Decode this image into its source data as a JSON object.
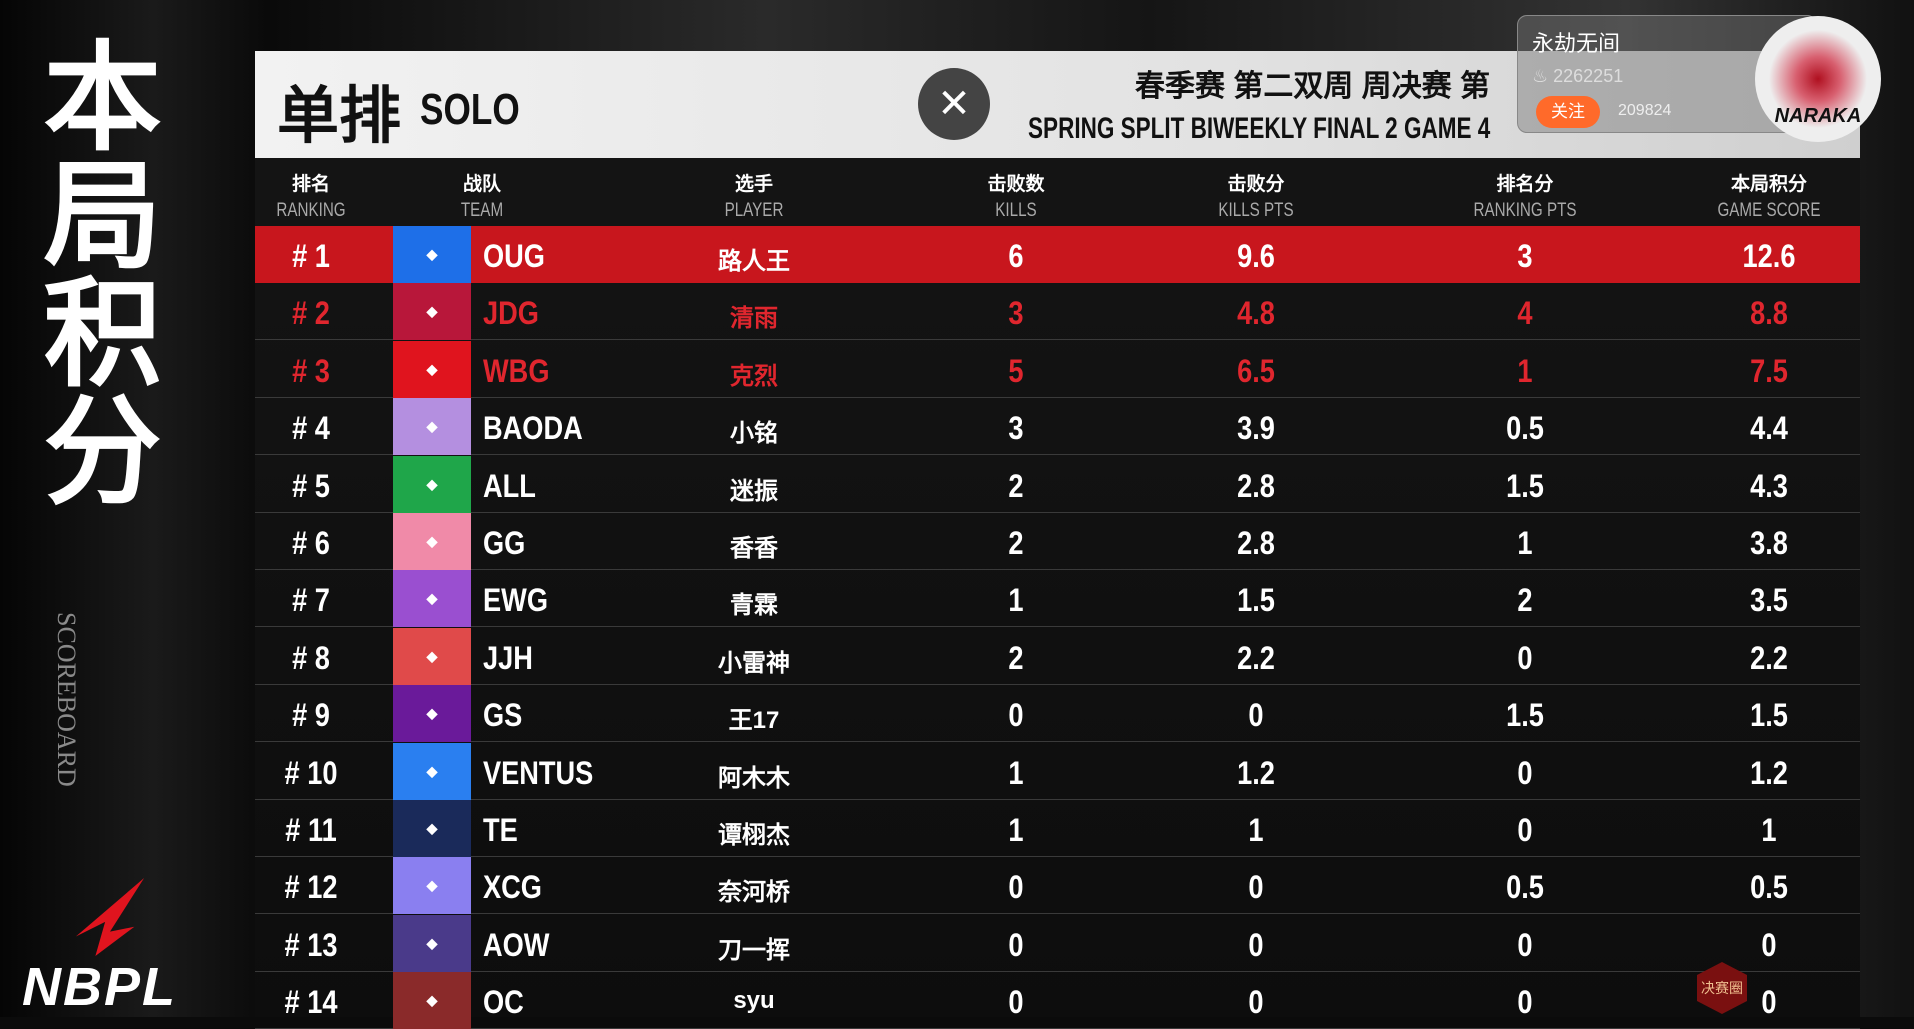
{
  "sidebar": {
    "title_cn": "本局积分",
    "title_en": "SCOREBOARD",
    "brand": "NBPL"
  },
  "header": {
    "title_cn": "单排",
    "title_en": "SOLO",
    "subtitle_cn": "春季赛 第二双周 周决赛 第",
    "subtitle_en": "SPRING SPLIT BIWEEKLY FINAL 2 GAME 4",
    "close_icon": "close-icon"
  },
  "columns": [
    {
      "cn": "排名",
      "en": "RANKING"
    },
    {
      "cn": "战队",
      "en": "TEAM"
    },
    {
      "cn": "选手",
      "en": "PLAYER"
    },
    {
      "cn": "击败数",
      "en": "KILLS"
    },
    {
      "cn": "击败分",
      "en": "KILLS PTS"
    },
    {
      "cn": "排名分",
      "en": "RANKING PTS"
    },
    {
      "cn": "本局积分",
      "en": "GAME SCORE"
    }
  ],
  "rows": [
    {
      "rank": "# 1",
      "team": "OUG",
      "player": "路人王",
      "kills": "6",
      "kills_pts": "9.6",
      "rank_pts": "3",
      "score": "12.6",
      "color": "#1e6fe8"
    },
    {
      "rank": "# 2",
      "team": "JDG",
      "player": "清雨",
      "kills": "3",
      "kills_pts": "4.8",
      "rank_pts": "4",
      "score": "8.8",
      "color": "#b8173a"
    },
    {
      "rank": "# 3",
      "team": "WBG",
      "player": "克烈",
      "kills": "5",
      "kills_pts": "6.5",
      "rank_pts": "1",
      "score": "7.5",
      "color": "#e0141e"
    },
    {
      "rank": "# 4",
      "team": "BAODA",
      "player": "小铭",
      "kills": "3",
      "kills_pts": "3.9",
      "rank_pts": "0.5",
      "score": "4.4",
      "color": "#b48fe0"
    },
    {
      "rank": "# 5",
      "team": "ALL",
      "player": "迷振",
      "kills": "2",
      "kills_pts": "2.8",
      "rank_pts": "1.5",
      "score": "4.3",
      "color": "#1fa64a"
    },
    {
      "rank": "# 6",
      "team": "GG",
      "player": "香香",
      "kills": "2",
      "kills_pts": "2.8",
      "rank_pts": "1",
      "score": "3.8",
      "color": "#f08aa8"
    },
    {
      "rank": "# 7",
      "team": "EWG",
      "player": "青霖",
      "kills": "1",
      "kills_pts": "1.5",
      "rank_pts": "2",
      "score": "3.5",
      "color": "#9a4fd0"
    },
    {
      "rank": "# 8",
      "team": "JJH",
      "player": "小雷神",
      "kills": "2",
      "kills_pts": "2.2",
      "rank_pts": "0",
      "score": "2.2",
      "color": "#e04a4a"
    },
    {
      "rank": "# 9",
      "team": "GS",
      "player": "王17",
      "kills": "0",
      "kills_pts": "0",
      "rank_pts": "1.5",
      "score": "1.5",
      "color": "#6a1a9a"
    },
    {
      "rank": "# 10",
      "team": "VENTUS",
      "player": "阿木木",
      "kills": "1",
      "kills_pts": "1.2",
      "rank_pts": "0",
      "score": "1.2",
      "color": "#2a7ff0"
    },
    {
      "rank": "# 11",
      "team": "TE",
      "player": "谭栩杰",
      "kills": "1",
      "kills_pts": "1",
      "rank_pts": "0",
      "score": "1",
      "color": "#1a2a5a"
    },
    {
      "rank": "# 12",
      "team": "XCG",
      "player": "奈河桥",
      "kills": "0",
      "kills_pts": "0",
      "rank_pts": "0.5",
      "score": "0.5",
      "color": "#8a7ff0"
    },
    {
      "rank": "# 13",
      "team": "AOW",
      "player": "刀一挥",
      "kills": "0",
      "kills_pts": "0",
      "rank_pts": "0",
      "score": "0",
      "color": "#4a3a8a"
    },
    {
      "rank": "# 14",
      "team": "OC",
      "player": "syu",
      "kills": "0",
      "kills_pts": "0",
      "rank_pts": "0",
      "score": "0",
      "color": "#8a2a2a"
    }
  ],
  "stream_card": {
    "name": "永劫无间",
    "heat": "2262251",
    "follow_label": "关注",
    "followers": "209824",
    "avatar_text": "NARAKA"
  },
  "badge": {
    "label": "决赛圈"
  },
  "colors": {
    "highlight": "#c8161d",
    "accent_red": "#e0262e"
  }
}
